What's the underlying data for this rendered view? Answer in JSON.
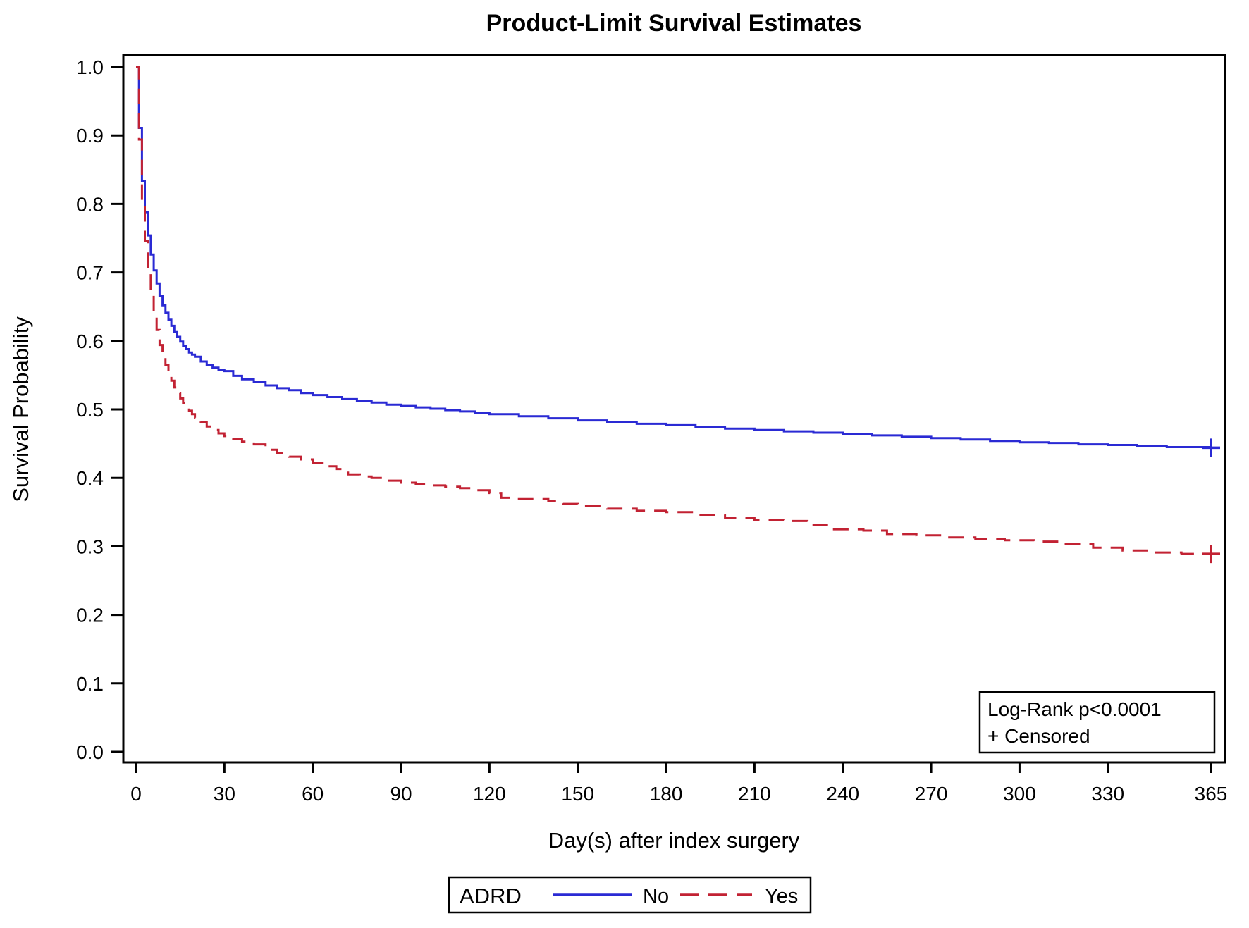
{
  "chart": {
    "title": "Product-Limit Survival Estimates",
    "x_axis_title": "Day(s) after index surgery",
    "y_axis_title": "Survival Probability",
    "annotation_box": {
      "line1": "Log-Rank p<0.0001",
      "line2": "+ Censored"
    },
    "legend": {
      "group_label": "ADRD",
      "entries": [
        {
          "label": "No",
          "color": "#2A2AD4",
          "style": "solid"
        },
        {
          "label": "Yes",
          "color": "#C22233",
          "style": "dashed"
        }
      ]
    }
  },
  "chart_data": {
    "type": "line",
    "subtype": "kaplan-meier-step",
    "title": "Product-Limit Survival Estimates",
    "xlabel": "Day(s) after index surgery",
    "ylabel": "Survival Probability",
    "xlim": [
      0,
      365
    ],
    "ylim": [
      0.0,
      1.0
    ],
    "grid": false,
    "legend_position": "bottom",
    "x_ticks": [
      0,
      30,
      60,
      90,
      120,
      150,
      180,
      210,
      240,
      270,
      300,
      330,
      365
    ],
    "y_tick_labels": [
      "1.0",
      "0.9",
      "0.8",
      "0.7",
      "0.6",
      "0.5",
      "0.4",
      "0.3",
      "0.2",
      "0.1",
      "0.0"
    ],
    "annotations": [
      "Log-Rank p<0.0001",
      "+ Censored"
    ],
    "series": [
      {
        "name": "No",
        "group": "ADRD",
        "color": "#2A2AD4",
        "style": "solid",
        "censor_marks": [
          [
            365,
            0.444
          ]
        ],
        "points": [
          [
            0,
            1.0
          ],
          [
            1,
            0.911
          ],
          [
            2,
            0.833
          ],
          [
            3,
            0.788
          ],
          [
            4,
            0.754
          ],
          [
            5,
            0.726
          ],
          [
            6,
            0.703
          ],
          [
            7,
            0.684
          ],
          [
            8,
            0.666
          ],
          [
            9,
            0.652
          ],
          [
            10,
            0.641
          ],
          [
            11,
            0.631
          ],
          [
            12,
            0.622
          ],
          [
            13,
            0.613
          ],
          [
            14,
            0.606
          ],
          [
            15,
            0.599
          ],
          [
            16,
            0.593
          ],
          [
            17,
            0.588
          ],
          [
            18,
            0.583
          ],
          [
            19,
            0.58
          ],
          [
            20,
            0.577
          ],
          [
            22,
            0.57
          ],
          [
            24,
            0.565
          ],
          [
            26,
            0.561
          ],
          [
            28,
            0.558
          ],
          [
            30,
            0.556
          ],
          [
            33,
            0.549
          ],
          [
            36,
            0.544
          ],
          [
            40,
            0.54
          ],
          [
            44,
            0.535
          ],
          [
            48,
            0.531
          ],
          [
            52,
            0.528
          ],
          [
            56,
            0.524
          ],
          [
            60,
            0.521
          ],
          [
            65,
            0.518
          ],
          [
            70,
            0.515
          ],
          [
            75,
            0.512
          ],
          [
            80,
            0.51
          ],
          [
            85,
            0.507
          ],
          [
            90,
            0.505
          ],
          [
            95,
            0.503
          ],
          [
            100,
            0.501
          ],
          [
            105,
            0.499
          ],
          [
            110,
            0.497
          ],
          [
            115,
            0.495
          ],
          [
            120,
            0.493
          ],
          [
            130,
            0.49
          ],
          [
            140,
            0.487
          ],
          [
            150,
            0.484
          ],
          [
            160,
            0.481
          ],
          [
            170,
            0.479
          ],
          [
            180,
            0.477
          ],
          [
            190,
            0.474
          ],
          [
            200,
            0.472
          ],
          [
            210,
            0.47
          ],
          [
            220,
            0.468
          ],
          [
            230,
            0.466
          ],
          [
            240,
            0.464
          ],
          [
            250,
            0.462
          ],
          [
            260,
            0.46
          ],
          [
            270,
            0.458
          ],
          [
            280,
            0.456
          ],
          [
            290,
            0.454
          ],
          [
            300,
            0.452
          ],
          [
            310,
            0.451
          ],
          [
            320,
            0.449
          ],
          [
            330,
            0.448
          ],
          [
            340,
            0.446
          ],
          [
            350,
            0.445
          ],
          [
            365,
            0.444
          ]
        ]
      },
      {
        "name": "Yes",
        "group": "ADRD",
        "color": "#C22233",
        "style": "dashed",
        "censor_marks": [
          [
            365,
            0.289
          ]
        ],
        "points": [
          [
            0,
            1.0
          ],
          [
            1,
            0.894
          ],
          [
            2,
            0.801
          ],
          [
            3,
            0.746
          ],
          [
            4,
            0.702
          ],
          [
            5,
            0.668
          ],
          [
            6,
            0.64
          ],
          [
            7,
            0.616
          ],
          [
            8,
            0.594
          ],
          [
            9,
            0.578
          ],
          [
            10,
            0.565
          ],
          [
            11,
            0.553
          ],
          [
            12,
            0.542
          ],
          [
            13,
            0.532
          ],
          [
            14,
            0.524
          ],
          [
            15,
            0.516
          ],
          [
            16,
            0.509
          ],
          [
            17,
            0.503
          ],
          [
            18,
            0.498
          ],
          [
            19,
            0.493
          ],
          [
            20,
            0.488
          ],
          [
            22,
            0.481
          ],
          [
            24,
            0.475
          ],
          [
            26,
            0.47
          ],
          [
            28,
            0.465
          ],
          [
            30,
            0.461
          ],
          [
            33,
            0.457
          ],
          [
            36,
            0.453
          ],
          [
            40,
            0.449
          ],
          [
            44,
            0.441
          ],
          [
            48,
            0.436
          ],
          [
            52,
            0.431
          ],
          [
            56,
            0.427
          ],
          [
            60,
            0.422
          ],
          [
            64,
            0.417
          ],
          [
            68,
            0.413
          ],
          [
            72,
            0.405
          ],
          [
            76,
            0.402
          ],
          [
            80,
            0.4
          ],
          [
            85,
            0.396
          ],
          [
            90,
            0.393
          ],
          [
            95,
            0.391
          ],
          [
            100,
            0.389
          ],
          [
            105,
            0.387
          ],
          [
            110,
            0.385
          ],
          [
            115,
            0.382
          ],
          [
            120,
            0.378
          ],
          [
            124,
            0.371
          ],
          [
            130,
            0.369
          ],
          [
            140,
            0.366
          ],
          [
            145,
            0.362
          ],
          [
            150,
            0.359
          ],
          [
            160,
            0.355
          ],
          [
            170,
            0.352
          ],
          [
            180,
            0.35
          ],
          [
            190,
            0.346
          ],
          [
            200,
            0.341
          ],
          [
            210,
            0.339
          ],
          [
            220,
            0.337
          ],
          [
            228,
            0.331
          ],
          [
            237,
            0.325
          ],
          [
            247,
            0.323
          ],
          [
            255,
            0.318
          ],
          [
            265,
            0.316
          ],
          [
            275,
            0.313
          ],
          [
            285,
            0.311
          ],
          [
            295,
            0.309
          ],
          [
            305,
            0.307
          ],
          [
            315,
            0.303
          ],
          [
            325,
            0.298
          ],
          [
            335,
            0.294
          ],
          [
            345,
            0.291
          ],
          [
            355,
            0.289
          ],
          [
            365,
            0.289
          ]
        ]
      }
    ]
  }
}
